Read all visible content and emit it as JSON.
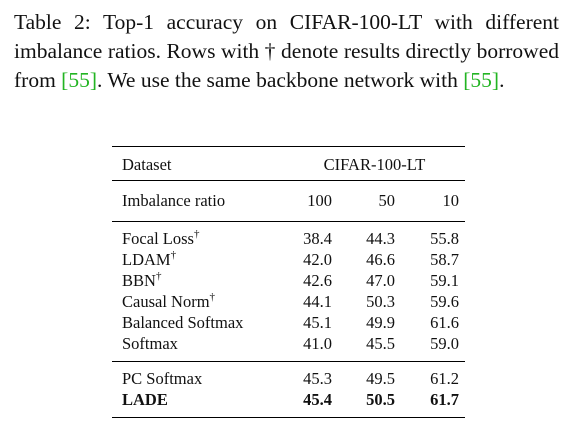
{
  "caption": {
    "prefix": "Table 2: Top-1 accuracy on CIFAR-100-LT with different imbalance ratios. Rows with † denote results directly borrowed from ",
    "cite1": "[55]",
    "middle": ". We use the same backbone network with ",
    "cite2": "[55]",
    "suffix": "."
  },
  "table": {
    "header_dataset_label": "Dataset",
    "header_dataset_name": "CIFAR-100-LT",
    "header_ratio_label": "Imbalance ratio",
    "ratios": [
      "100",
      "50",
      "10"
    ],
    "rows": [
      {
        "method": "Focal Loss",
        "dagger": "†",
        "values": [
          "38.4",
          "44.3",
          "55.8"
        ]
      },
      {
        "method": "LDAM",
        "dagger": "†",
        "values": [
          "42.0",
          "46.6",
          "58.7"
        ]
      },
      {
        "method": "BBN",
        "dagger": "†",
        "values": [
          "42.6",
          "47.0",
          "59.1"
        ]
      },
      {
        "method": "Causal Norm",
        "dagger": "†",
        "values": [
          "44.1",
          "50.3",
          "59.6"
        ]
      },
      {
        "method": "Balanced Softmax",
        "dagger": "",
        "values": [
          "45.1",
          "49.9",
          "61.6"
        ]
      },
      {
        "method": "Softmax",
        "dagger": "",
        "values": [
          "41.0",
          "45.5",
          "59.0"
        ]
      },
      {
        "method": "PC Softmax",
        "dagger": "",
        "values": [
          "45.3",
          "49.5",
          "61.2"
        ]
      },
      {
        "method": "LADE",
        "dagger": "",
        "values": [
          "45.4",
          "50.5",
          "61.7"
        ]
      }
    ]
  },
  "colors": {
    "citation": "#22b422",
    "text": "#111111"
  }
}
